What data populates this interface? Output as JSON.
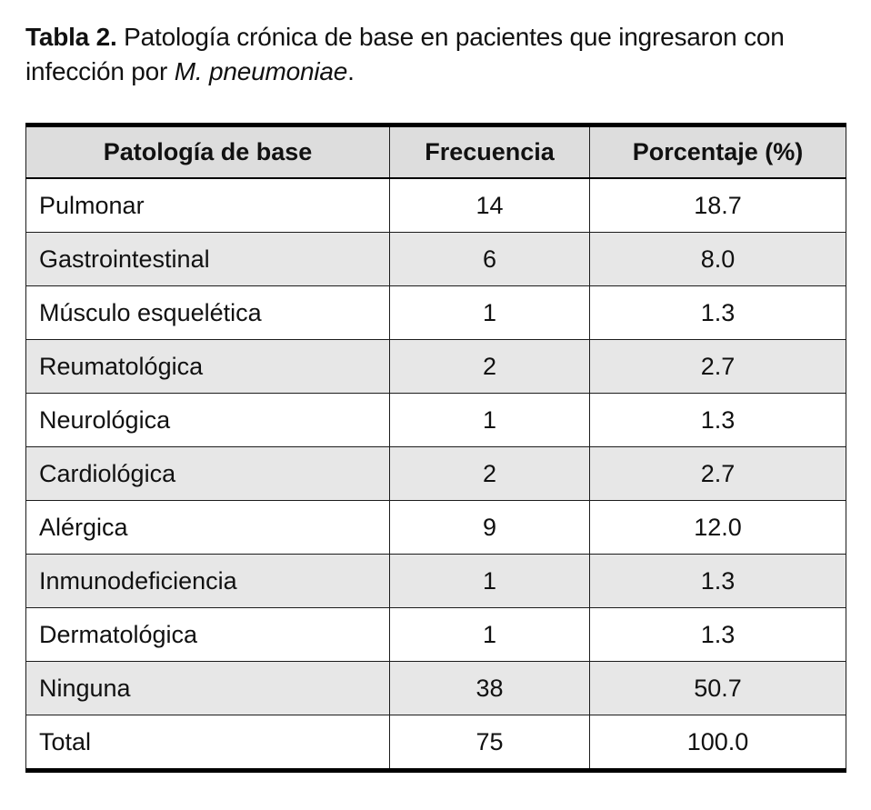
{
  "title": {
    "label": "Tabla 2.",
    "text": " Patología crónica de base en pacientes que ingresaron con infección por ",
    "species": "M. pneumoniae",
    "suffix": "."
  },
  "table": {
    "headers": [
      "Patología de base",
      "Frecuencia",
      "Porcentaje (%)"
    ],
    "rows": [
      {
        "label": "Pulmonar",
        "frequency": "14",
        "percentage": "18.7"
      },
      {
        "label": "Gastrointestinal",
        "frequency": "6",
        "percentage": "8.0"
      },
      {
        "label": "Músculo esquelética",
        "frequency": "1",
        "percentage": "1.3"
      },
      {
        "label": "Reumatológica",
        "frequency": "2",
        "percentage": "2.7"
      },
      {
        "label": "Neurológica",
        "frequency": "1",
        "percentage": "1.3"
      },
      {
        "label": "Cardiológica",
        "frequency": "2",
        "percentage": "2.7"
      },
      {
        "label": "Alérgica",
        "frequency": "9",
        "percentage": "12.0"
      },
      {
        "label": "Inmunodeficiencia",
        "frequency": "1",
        "percentage": "1.3"
      },
      {
        "label": "Dermatológica",
        "frequency": "1",
        "percentage": "1.3"
      },
      {
        "label": "Ninguna",
        "frequency": "38",
        "percentage": "50.7"
      },
      {
        "label": "Total",
        "frequency": "75",
        "percentage": "100.0"
      }
    ]
  },
  "colors": {
    "header_background": "#dddddd",
    "stripe_background": "#e7e7e7",
    "border": "#000000"
  },
  "chart_data": {
    "type": "table",
    "title": "Tabla 2. Patología crónica de base en pacientes que ingresaron con infección por M. pneumoniae.",
    "columns": [
      "Patología de base",
      "Frecuencia",
      "Porcentaje (%)"
    ],
    "rows": [
      [
        "Pulmonar",
        14,
        18.7
      ],
      [
        "Gastrointestinal",
        6,
        8.0
      ],
      [
        "Músculo esquelética",
        1,
        1.3
      ],
      [
        "Reumatológica",
        2,
        2.7
      ],
      [
        "Neurológica",
        1,
        1.3
      ],
      [
        "Cardiológica",
        2,
        2.7
      ],
      [
        "Alérgica",
        9,
        12.0
      ],
      [
        "Inmunodeficiencia",
        1,
        1.3
      ],
      [
        "Dermatológica",
        1,
        1.3
      ],
      [
        "Ninguna",
        38,
        50.7
      ],
      [
        "Total",
        75,
        100.0
      ]
    ]
  }
}
